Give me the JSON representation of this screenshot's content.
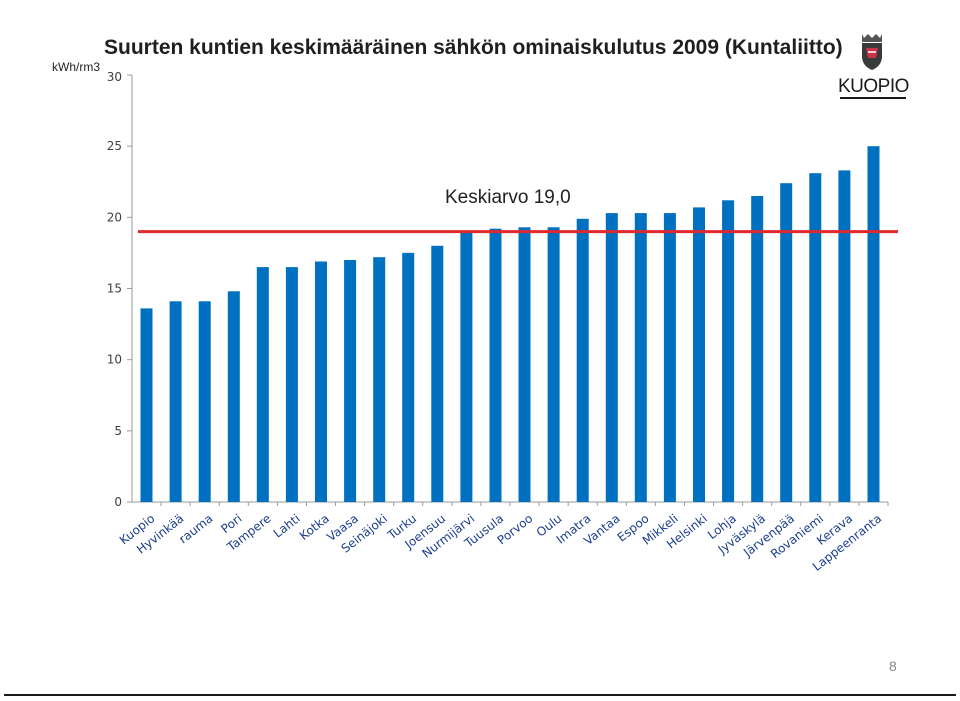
{
  "slide": {
    "title": "Suurten kuntien keskimääräinen sähkön ominaiskulutus 2009 (Kuntaliitto)",
    "unit_label": "kWh/rm3",
    "logo_text": "KUOPIO",
    "page_number": "8"
  },
  "colors": {
    "bar": "#0070c0",
    "average_line": "#e0282e",
    "category_text": "#1a3d8f"
  },
  "chart_data": {
    "type": "bar",
    "title": "Suurten kuntien keskimääräinen sähkön ominaiskulutus 2009 (Kuntaliitto)",
    "ylabel": "kWh/rm3",
    "xlabel": "",
    "ylim": [
      0,
      30
    ],
    "yticks": [
      "0",
      "5",
      "10",
      "15",
      "20",
      "25",
      "30"
    ],
    "grid": false,
    "legend": "none",
    "categories": [
      "Kuopio",
      "Hyvinkää",
      "rauma",
      "Pori",
      "Tampere",
      "Lahti",
      "Kotka",
      "Vaasa",
      "Seinäjoki",
      "Turku",
      "Joensuu",
      "Nurmijärvi",
      "Tuusula",
      "Porvoo",
      "Oulu",
      "Imatra",
      "Vantaa",
      "Espoo",
      "Mikkeli",
      "Helsinki",
      "Lohja",
      "Jyväskylä",
      "Järvenpää",
      "Rovaniemi",
      "Kerava",
      "Lappeenranta"
    ],
    "values": [
      13.6,
      14.1,
      14.1,
      14.8,
      16.5,
      16.5,
      16.9,
      17.0,
      17.2,
      17.5,
      18.0,
      18.9,
      19.2,
      19.3,
      19.3,
      19.9,
      20.3,
      20.3,
      20.3,
      20.7,
      21.2,
      21.5,
      22.4,
      23.1,
      23.3,
      25.0
    ],
    "reference_line": {
      "value": 19.0,
      "label": "Keskiarvo 19,0"
    }
  }
}
